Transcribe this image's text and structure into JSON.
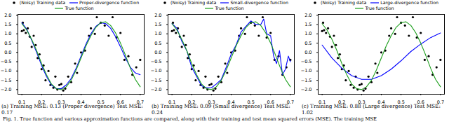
{
  "chart_data": [
    {
      "type": "line",
      "caption": "(a) Training MSE: 0.13 (Proper divergence) Test MSE: 0.17",
      "xlim": [
        0.08,
        0.72
      ],
      "xticks": [
        0.1,
        0.2,
        0.3,
        0.4,
        0.5,
        0.6,
        0.7
      ],
      "ylim": [
        -2.25,
        2.05
      ],
      "yticks": [
        {
          "value": -2.0,
          "label": "−2.0"
        },
        {
          "value": -1.5,
          "label": "−1.5"
        },
        {
          "value": -1.0,
          "label": "−1.0"
        },
        {
          "value": -0.5,
          "label": "−0.5"
        },
        {
          "value": 0.0,
          "label": "0.0"
        },
        0.5,
        {
          "value": 1.0,
          "label": "1.0"
        },
        1.5,
        {
          "value": 2.0,
          "label": "2.0"
        }
      ],
      "legend": "top",
      "series": [
        {
          "name": "(Noisy) Training data",
          "type": "scatter",
          "marker": "o",
          "color": "#000000",
          "x": [
            0.1,
            0.105,
            0.11,
            0.12,
            0.13,
            0.14,
            0.15,
            0.16,
            0.17,
            0.18,
            0.19,
            0.2,
            0.21,
            0.22,
            0.235,
            0.245,
            0.26,
            0.27,
            0.28,
            0.29,
            0.3,
            0.31,
            0.32,
            0.335,
            0.35,
            0.37,
            0.38,
            0.4,
            0.42,
            0.44,
            0.45,
            0.47,
            0.48,
            0.5,
            0.52,
            0.54,
            0.56,
            0.58,
            0.6,
            0.62,
            0.64,
            0.66,
            0.68,
            0.7
          ],
          "values": [
            1.15,
            1.6,
            1.2,
            1.05,
            1.3,
            0.85,
            0.3,
            0.9,
            0.4,
            -0.3,
            -0.1,
            -0.9,
            -0.7,
            -1.5,
            -1.0,
            -1.75,
            -1.9,
            -1.3,
            -2.0,
            -1.75,
            -1.7,
            -2.05,
            -1.95,
            -1.3,
            -1.6,
            -0.6,
            -1.1,
            0.0,
            0.1,
            0.9,
            1.3,
            1.0,
            1.9,
            1.6,
            1.45,
            0.9,
            1.9,
            0.8,
            1.05,
            -0.4,
            -0.2,
            -1.2,
            -0.8,
            -0.4
          ]
        },
        {
          "name": "Proper-divergence function",
          "type": "line",
          "color": "#0000ff",
          "x": [
            0.1,
            0.125,
            0.15,
            0.175,
            0.2,
            0.225,
            0.25,
            0.275,
            0.3,
            0.325,
            0.35,
            0.375,
            0.4,
            0.425,
            0.45,
            0.475,
            0.5,
            0.525,
            0.55,
            0.575,
            0.6,
            0.625,
            0.65,
            0.675,
            0.7
          ],
          "values": [
            1.6,
            1.25,
            0.65,
            0.0,
            -0.7,
            -1.3,
            -1.75,
            -1.95,
            -1.95,
            -1.75,
            -1.4,
            -0.85,
            -0.2,
            0.45,
            1.0,
            1.4,
            1.6,
            1.55,
            1.3,
            0.85,
            0.3,
            -0.3,
            -0.8,
            -1.1,
            -1.2
          ]
        },
        {
          "name": "True function",
          "type": "line",
          "color": "#1a9e1a",
          "x": [
            0.1,
            0.125,
            0.15,
            0.175,
            0.2,
            0.225,
            0.25,
            0.275,
            0.3,
            0.325,
            0.35,
            0.375,
            0.4,
            0.425,
            0.45,
            0.475,
            0.5,
            0.525,
            0.55,
            0.575,
            0.6,
            0.625,
            0.65,
            0.675,
            0.7
          ],
          "values": [
            1.55,
            1.2,
            0.7,
            0.1,
            -0.6,
            -1.2,
            -1.7,
            -1.95,
            -2.0,
            -1.85,
            -1.5,
            -0.95,
            -0.3,
            0.35,
            0.9,
            1.35,
            1.6,
            1.65,
            1.45,
            1.05,
            0.5,
            -0.15,
            -0.85,
            -1.45,
            -1.85
          ]
        }
      ]
    },
    {
      "type": "line",
      "caption": "(b) Training MSE: 0.09 (Small divergence) Test MSE: 0.24",
      "xlim": [
        0.08,
        0.72
      ],
      "xticks": [
        0.1,
        0.2,
        0.3,
        0.4,
        0.5,
        0.6,
        0.7
      ],
      "ylim": [
        -2.25,
        2.05
      ],
      "yticks": [
        {
          "value": -2.0,
          "label": "−2.0"
        },
        {
          "value": -1.5,
          "label": "−1.5"
        },
        {
          "value": -1.0,
          "label": "−1.0"
        },
        {
          "value": -0.5,
          "label": "−0.5"
        },
        {
          "value": 0.0,
          "label": "0.0"
        },
        0.5,
        {
          "value": 1.0,
          "label": "1.0"
        },
        1.5,
        {
          "value": 2.0,
          "label": "2.0"
        }
      ],
      "legend": "top",
      "series": [
        {
          "name": "(Noisy) Training data",
          "type": "scatter",
          "marker": "o",
          "color": "#000000",
          "x": [
            0.1,
            0.105,
            0.11,
            0.12,
            0.13,
            0.14,
            0.15,
            0.16,
            0.17,
            0.18,
            0.19,
            0.2,
            0.21,
            0.22,
            0.235,
            0.245,
            0.26,
            0.27,
            0.28,
            0.29,
            0.3,
            0.31,
            0.32,
            0.335,
            0.35,
            0.37,
            0.38,
            0.4,
            0.42,
            0.44,
            0.45,
            0.47,
            0.48,
            0.5,
            0.52,
            0.54,
            0.56,
            0.58,
            0.6,
            0.62,
            0.64,
            0.66,
            0.68,
            0.7
          ],
          "values": [
            1.15,
            1.6,
            1.2,
            1.05,
            1.3,
            0.85,
            0.3,
            0.9,
            0.4,
            -0.3,
            -0.1,
            -0.9,
            -0.7,
            -1.5,
            -1.0,
            -1.75,
            -1.9,
            -1.3,
            -2.0,
            -1.75,
            -1.7,
            -2.05,
            -1.95,
            -1.3,
            -1.6,
            -0.6,
            -1.1,
            0.0,
            0.1,
            0.9,
            1.3,
            1.0,
            1.9,
            1.6,
            1.45,
            0.9,
            1.9,
            0.8,
            1.05,
            -0.4,
            -0.2,
            -1.2,
            -0.8,
            -0.4
          ]
        },
        {
          "name": "Small-divergence function",
          "type": "line",
          "color": "#0000ff",
          "x": [
            0.1,
            0.125,
            0.15,
            0.175,
            0.2,
            0.225,
            0.25,
            0.275,
            0.3,
            0.325,
            0.35,
            0.375,
            0.4,
            0.425,
            0.45,
            0.475,
            0.5,
            0.525,
            0.55,
            0.565,
            0.58,
            0.6,
            0.615,
            0.63,
            0.645,
            0.66,
            0.675,
            0.69,
            0.7
          ],
          "values": [
            1.55,
            1.3,
            0.6,
            0.1,
            -0.8,
            -1.3,
            -1.8,
            -1.9,
            -1.9,
            -1.7,
            -1.45,
            -0.8,
            -0.1,
            0.4,
            1.1,
            1.4,
            1.7,
            1.5,
            1.5,
            1.8,
            1.0,
            0.9,
            -0.2,
            -0.6,
            0.1,
            -1.2,
            -0.9,
            -0.2,
            -0.5
          ]
        },
        {
          "name": "True function",
          "type": "line",
          "color": "#1a9e1a",
          "x": [
            0.1,
            0.125,
            0.15,
            0.175,
            0.2,
            0.225,
            0.25,
            0.275,
            0.3,
            0.325,
            0.35,
            0.375,
            0.4,
            0.425,
            0.45,
            0.475,
            0.5,
            0.525,
            0.55,
            0.575,
            0.6,
            0.625,
            0.65,
            0.675,
            0.7
          ],
          "values": [
            1.55,
            1.2,
            0.7,
            0.1,
            -0.6,
            -1.2,
            -1.7,
            -1.95,
            -2.0,
            -1.85,
            -1.5,
            -0.95,
            -0.3,
            0.35,
            0.9,
            1.35,
            1.6,
            1.65,
            1.45,
            1.05,
            0.5,
            -0.15,
            -0.85,
            -1.45,
            -1.85
          ]
        }
      ]
    },
    {
      "type": "line",
      "caption": "(c) Training MSE: 0.88 (Large divergence) Test MSE: 1.02",
      "xlim": [
        0.08,
        0.72
      ],
      "xticks": [
        0.1,
        0.2,
        0.3,
        0.4,
        0.5,
        0.6,
        0.7
      ],
      "ylim": [
        -2.25,
        2.05
      ],
      "yticks": [
        {
          "value": -2.0,
          "label": "−2.0"
        },
        {
          "value": -1.5,
          "label": "−1.5"
        },
        {
          "value": -1.0,
          "label": "−1.0"
        },
        {
          "value": -0.5,
          "label": "−0.5"
        },
        {
          "value": 0.0,
          "label": "0.0"
        },
        0.5,
        {
          "value": 1.0,
          "label": "1.0"
        },
        1.5,
        {
          "value": 2.0,
          "label": "2.0"
        }
      ],
      "legend": "top",
      "series": [
        {
          "name": "(Noisy) Training data",
          "type": "scatter",
          "marker": "o",
          "color": "#000000",
          "x": [
            0.1,
            0.105,
            0.11,
            0.12,
            0.13,
            0.14,
            0.15,
            0.16,
            0.17,
            0.18,
            0.19,
            0.2,
            0.21,
            0.22,
            0.235,
            0.245,
            0.26,
            0.27,
            0.28,
            0.29,
            0.3,
            0.31,
            0.32,
            0.335,
            0.35,
            0.37,
            0.38,
            0.4,
            0.42,
            0.44,
            0.45,
            0.47,
            0.48,
            0.5,
            0.52,
            0.54,
            0.56,
            0.58,
            0.6,
            0.62,
            0.64,
            0.66,
            0.68,
            0.7
          ],
          "values": [
            1.15,
            1.6,
            1.2,
            1.05,
            1.3,
            0.85,
            0.3,
            0.9,
            0.4,
            -0.3,
            -0.1,
            -0.9,
            -0.7,
            -1.5,
            -1.0,
            -1.75,
            -1.9,
            -1.3,
            -2.0,
            -1.75,
            -1.7,
            -2.05,
            -1.95,
            -1.3,
            -1.6,
            -0.6,
            -1.1,
            0.0,
            0.1,
            0.9,
            1.3,
            1.0,
            1.9,
            1.6,
            1.45,
            0.9,
            1.9,
            0.8,
            1.05,
            -0.4,
            -0.2,
            -1.2,
            -0.8,
            -0.4
          ]
        },
        {
          "name": "Large-divergence function",
          "type": "line",
          "color": "#0000ff",
          "x": [
            0.1,
            0.15,
            0.2,
            0.25,
            0.3,
            0.35,
            0.4,
            0.45,
            0.5,
            0.55,
            0.6,
            0.65,
            0.7
          ],
          "values": [
            0.4,
            -0.3,
            -0.85,
            -1.25,
            -1.45,
            -1.45,
            -1.25,
            -0.9,
            -0.45,
            0.05,
            0.45,
            0.8,
            1.05
          ]
        },
        {
          "name": "True function",
          "type": "line",
          "color": "#1a9e1a",
          "x": [
            0.1,
            0.125,
            0.15,
            0.175,
            0.2,
            0.225,
            0.25,
            0.275,
            0.3,
            0.325,
            0.35,
            0.375,
            0.4,
            0.425,
            0.45,
            0.475,
            0.5,
            0.525,
            0.55,
            0.575,
            0.6,
            0.625,
            0.65,
            0.675,
            0.7
          ],
          "values": [
            1.55,
            1.2,
            0.7,
            0.1,
            -0.6,
            -1.2,
            -1.7,
            -1.95,
            -2.0,
            -1.85,
            -1.5,
            -0.95,
            -0.3,
            0.35,
            0.9,
            1.35,
            1.6,
            1.65,
            1.45,
            1.05,
            0.5,
            -0.15,
            -0.85,
            -1.45,
            -1.85
          ]
        }
      ]
    }
  ],
  "caption": "Fig. 1.  True function and various approximation functions are compared, along with their training and test mean squared errors (MSE). The training MSE"
}
